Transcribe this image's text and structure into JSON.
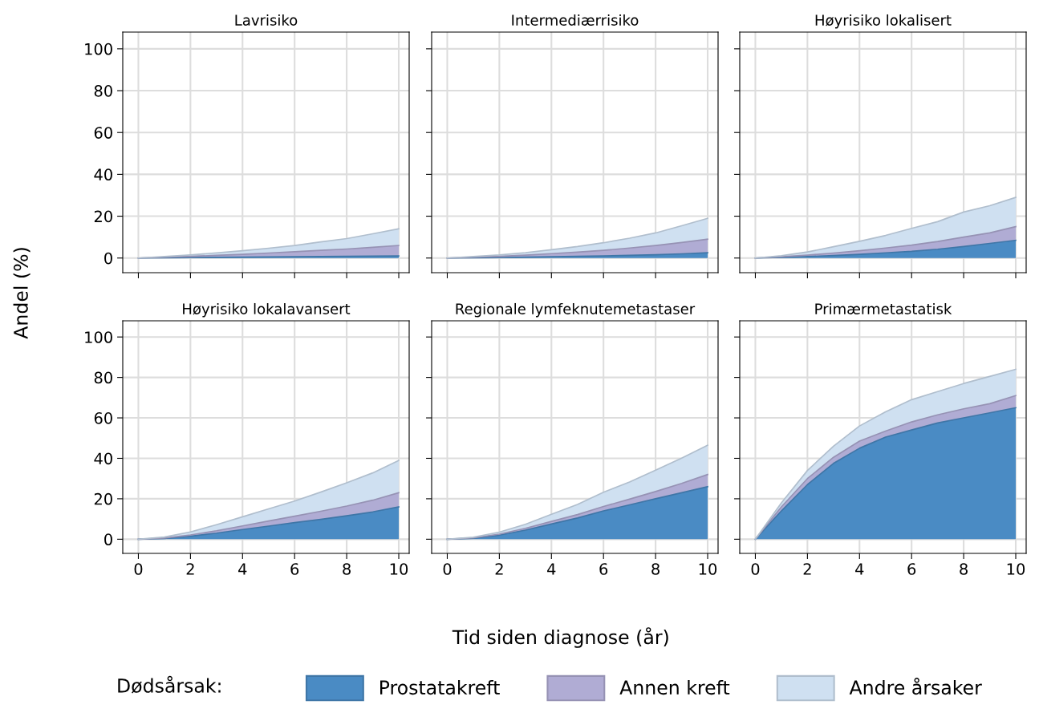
{
  "chart_data": [
    {
      "type": "area",
      "stacked": true,
      "title": "Lavrisiko",
      "ylabel": "Andel (%)",
      "legend_title": "Dødsårsak:",
      "legend": "bottom",
      "grid": true,
      "tick_labels": "y",
      "xlim": [
        -0.6,
        10.4
      ],
      "ylim": [
        -7,
        108
      ],
      "xticks": [
        0,
        2,
        4,
        6,
        8,
        10
      ],
      "yticks": [
        0,
        20,
        40,
        60,
        80,
        100
      ],
      "x": [
        0,
        1,
        2,
        3,
        4,
        5,
        6,
        7,
        8,
        9,
        10
      ],
      "series": [
        {
          "name": "Prostatakreft",
          "color": "#4a8bc4",
          "values": [
            0,
            0.1,
            0.2,
            0.3,
            0.4,
            0.5,
            0.6,
            0.7,
            0.8,
            0.9,
            1.0
          ]
        },
        {
          "name": "Annen kreft",
          "color": "#b0acd4",
          "values": [
            0,
            0.3,
            0.6,
            1,
            1.4,
            1.9,
            2.4,
            3,
            3.5,
            4.2,
            5
          ]
        },
        {
          "name": "Andre årsaker",
          "color": "#cfe0f1",
          "values": [
            0,
            0.3,
            0.7,
            1.2,
            1.7,
            2.3,
            3,
            4,
            5,
            6.5,
            8
          ]
        }
      ]
    },
    {
      "type": "area",
      "stacked": true,
      "title": "Intermediærrisiko",
      "grid": true,
      "tick_labels": false,
      "xlim": [
        -0.6,
        10.4
      ],
      "ylim": [
        -7,
        108
      ],
      "xticks": [
        0,
        2,
        4,
        6,
        8,
        10
      ],
      "yticks": [
        0,
        20,
        40,
        60,
        80,
        100
      ],
      "x": [
        0,
        1,
        2,
        3,
        4,
        5,
        6,
        7,
        8,
        9,
        10
      ],
      "series": [
        {
          "color": "#4a8bc4",
          "values": [
            0,
            0.1,
            0.2,
            0.4,
            0.6,
            0.8,
            1,
            1.3,
            1.6,
            2,
            2.5
          ]
        },
        {
          "color": "#b0acd4",
          "values": [
            0,
            0.3,
            0.6,
            1,
            1.5,
            2,
            2.7,
            3.5,
            4.4,
            5.4,
            6.5
          ]
        },
        {
          "color": "#cfe0f1",
          "values": [
            0,
            0.3,
            0.7,
            1.2,
            1.9,
            2.7,
            3.6,
            4.7,
            6,
            8,
            10
          ]
        }
      ]
    },
    {
      "type": "area",
      "stacked": true,
      "title": "Høyrisiko lokalisert",
      "grid": true,
      "tick_labels": false,
      "xlim": [
        -0.6,
        10.4
      ],
      "ylim": [
        -7,
        108
      ],
      "xticks": [
        0,
        2,
        4,
        6,
        8,
        10
      ],
      "yticks": [
        0,
        20,
        40,
        60,
        80,
        100
      ],
      "x": [
        0,
        1,
        2,
        3,
        4,
        5,
        6,
        7,
        8,
        9,
        10
      ],
      "series": [
        {
          "color": "#4a8bc4",
          "values": [
            0,
            0.3,
            0.7,
            1.2,
            1.8,
            2.5,
            3.2,
            4.2,
            5.5,
            7,
            8.5
          ]
        },
        {
          "color": "#b0acd4",
          "values": [
            0,
            0.3,
            0.7,
            1.2,
            1.7,
            2.3,
            3,
            3.7,
            4.5,
            5,
            6.5
          ]
        },
        {
          "color": "#cfe0f1",
          "values": [
            0,
            0.5,
            1.5,
            3,
            4.5,
            6,
            8,
            9.5,
            12,
            13,
            14
          ]
        }
      ]
    },
    {
      "type": "area",
      "stacked": true,
      "title": "Høyrisiko lokalavansert",
      "grid": true,
      "xlim": [
        -0.6,
        10.4
      ],
      "ylim": [
        -7,
        108
      ],
      "xticks": [
        0,
        2,
        4,
        6,
        8,
        10
      ],
      "yticks": [
        0,
        20,
        40,
        60,
        80,
        100
      ],
      "x": [
        0,
        1,
        2,
        3,
        4,
        5,
        6,
        7,
        8,
        9,
        10
      ],
      "series": [
        {
          "color": "#4a8bc4",
          "values": [
            0,
            0.4,
            1.5,
            3,
            4.8,
            6.5,
            8.2,
            9.8,
            11.6,
            13.5,
            16
          ]
        },
        {
          "color": "#b0acd4",
          "values": [
            0,
            0.2,
            0.6,
            1.2,
            1.8,
            2.5,
            3.2,
            4,
            4.8,
            5.8,
            7
          ]
        },
        {
          "color": "#cfe0f1",
          "values": [
            0,
            0.5,
            1.5,
            3,
            4.5,
            6,
            7.5,
            9.5,
            11.5,
            13.5,
            16
          ]
        }
      ]
    },
    {
      "type": "area",
      "stacked": true,
      "title": "Regionale lymfeknutemetastaser",
      "xlabel": "Tid siden diagnose (år)",
      "grid": true,
      "tick_labels": "x",
      "xlim": [
        -0.6,
        10.4
      ],
      "ylim": [
        -7,
        108
      ],
      "xticks": [
        0,
        2,
        4,
        6,
        8,
        10
      ],
      "yticks": [
        0,
        20,
        40,
        60,
        80,
        100
      ],
      "x": [
        0,
        1,
        2,
        3,
        4,
        5,
        6,
        7,
        8,
        9,
        10
      ],
      "series": [
        {
          "color": "#4a8bc4",
          "values": [
            0,
            0.5,
            2,
            4.5,
            7.5,
            10.5,
            14,
            17,
            20,
            23,
            26
          ]
        },
        {
          "color": "#b0acd4",
          "values": [
            0,
            0.2,
            0.5,
            0.9,
            1.3,
            1.7,
            2.2,
            2.8,
            3.6,
            4.6,
            6
          ]
        },
        {
          "color": "#cfe0f1",
          "values": [
            0,
            0.3,
            1,
            2,
            3.5,
            5,
            7,
            8.5,
            10.5,
            12.5,
            14.5
          ]
        }
      ]
    },
    {
      "type": "area",
      "stacked": true,
      "title": "Primærmetastatisk",
      "grid": true,
      "tick_labels": "x",
      "xlim": [
        -0.6,
        10.4
      ],
      "ylim": [
        -7,
        108
      ],
      "xticks": [
        0,
        2,
        4,
        6,
        8,
        10
      ],
      "yticks": [
        0,
        20,
        40,
        60,
        80,
        100
      ],
      "x": [
        0,
        1,
        2,
        3,
        4,
        5,
        6,
        7,
        8,
        9,
        10
      ],
      "series": [
        {
          "color": "#4a8bc4",
          "values": [
            0,
            14,
            27,
            37.5,
            45,
            50.5,
            54,
            57.5,
            60,
            62.5,
            65
          ]
        },
        {
          "color": "#b0acd4",
          "values": [
            0,
            2,
            3,
            3,
            3.5,
            3,
            4,
            4,
            4.5,
            4.5,
            6
          ]
        },
        {
          "color": "#cfe0f1",
          "values": [
            0,
            2,
            4,
            5.5,
            7.5,
            9.5,
            11,
            11.5,
            12.5,
            13.5,
            13
          ]
        }
      ]
    }
  ]
}
